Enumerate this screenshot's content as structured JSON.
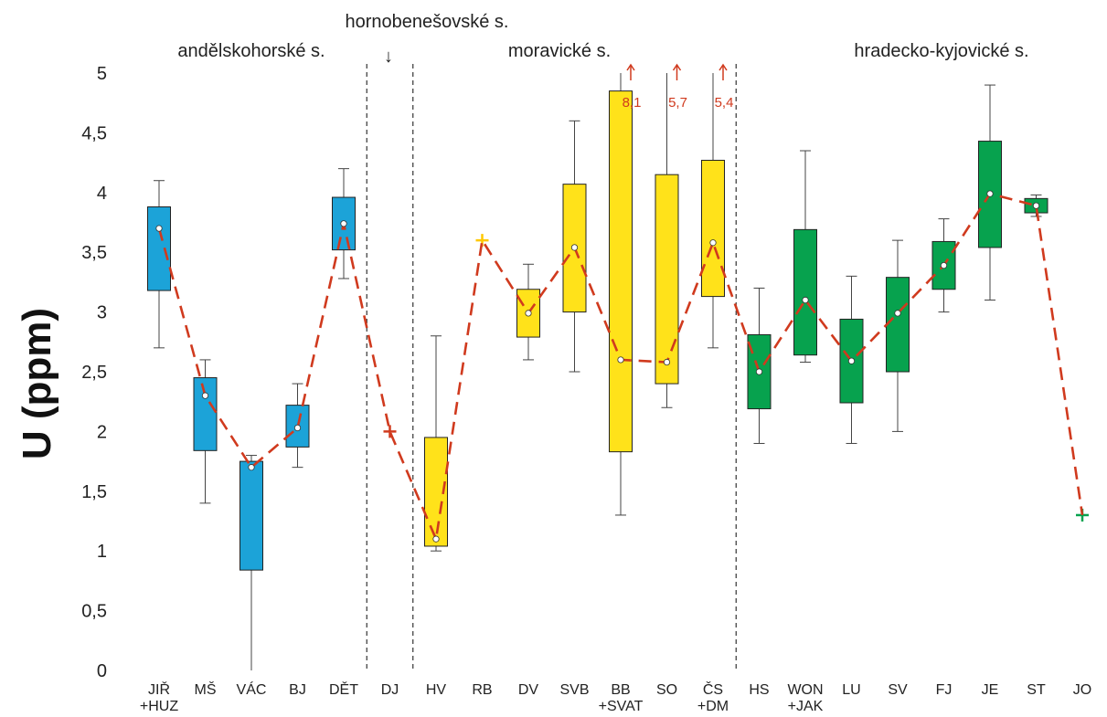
{
  "chart_data": {
    "type": "box",
    "ylabel": "U (ppm)",
    "ylim": [
      0,
      5
    ],
    "yticks": [
      "0",
      "0,5",
      "1",
      "1,5",
      "2",
      "2,5",
      "3",
      "3,5",
      "4",
      "4,5",
      "5"
    ],
    "grid": false,
    "groups": [
      {
        "label": "andělskohorské s.",
        "color": "#1ca3d8",
        "categories": [
          "JIŘ+HUZ",
          "MŠ",
          "VÁC",
          "BJ",
          "DĚT"
        ]
      },
      {
        "label": "hornobenešovské s.",
        "color": "#7a7a7a",
        "categories": [
          "DJ"
        ]
      },
      {
        "label": "moravické s.",
        "color": "#ffe21a",
        "categories": [
          "HV",
          "RB",
          "DV",
          "SVB",
          "BB+SVAT",
          "SO",
          "ČS+DM"
        ]
      },
      {
        "label": "hradecko-kyjovické s.",
        "color": "#07a24e",
        "categories": [
          "HS",
          "WON+JAK",
          "LU",
          "SV",
          "FJ",
          "JE",
          "ST",
          "JO"
        ]
      }
    ],
    "boxes": [
      {
        "name": "JIŘ",
        "name2": "+HUZ",
        "color": "#1ca3d8",
        "min": 2.7,
        "q1": 3.18,
        "median": 3.7,
        "q3": 3.88,
        "max": 4.1
      },
      {
        "name": "MŠ",
        "name2": "",
        "color": "#1ca3d8",
        "min": 1.4,
        "q1": 1.84,
        "median": 2.3,
        "q3": 2.45,
        "max": 2.6
      },
      {
        "name": "VÁC",
        "name2": "",
        "color": "#1ca3d8",
        "min": 0,
        "q1": 0.84,
        "median": 1.7,
        "q3": 1.75,
        "max": 1.8
      },
      {
        "name": "BJ",
        "name2": "",
        "color": "#1ca3d8",
        "min": 1.7,
        "q1": 1.87,
        "median": 2.03,
        "q3": 2.22,
        "max": 2.4
      },
      {
        "name": "DĚT",
        "name2": "",
        "color": "#1ca3d8",
        "min": 3.28,
        "q1": 3.52,
        "median": 3.74,
        "q3": 3.96,
        "max": 4.2
      },
      {
        "name": "DJ",
        "name2": "",
        "color": "#d03a1e",
        "single": 2.0
      },
      {
        "name": "HV",
        "name2": "",
        "color": "#ffe21a",
        "min": 1.0,
        "q1": 1.04,
        "median": 1.1,
        "q3": 1.95,
        "max": 2.8
      },
      {
        "name": "RB",
        "name2": "",
        "color": "#ffc800",
        "single": 3.6
      },
      {
        "name": "DV",
        "name2": "",
        "color": "#ffe21a",
        "min": 2.6,
        "q1": 2.79,
        "median": 2.99,
        "q3": 3.19,
        "max": 3.4
      },
      {
        "name": "SVB",
        "name2": "",
        "color": "#ffe21a",
        "min": 2.5,
        "q1": 3.0,
        "median": 3.54,
        "q3": 4.07,
        "max": 4.6
      },
      {
        "name": "BB",
        "name2": "+SVAT",
        "color": "#ffe21a",
        "min": 1.3,
        "q1": 1.83,
        "median": 2.6,
        "q3": 4.85,
        "max": 5.0,
        "overflow": "8,1"
      },
      {
        "name": "SO",
        "name2": "",
        "color": "#ffe21a",
        "min": 2.2,
        "q1": 2.4,
        "median": 2.58,
        "q3": 4.15,
        "max": 5.0,
        "overflow": "5,7"
      },
      {
        "name": "ČS",
        "name2": "+DM",
        "color": "#ffe21a",
        "min": 2.7,
        "q1": 3.13,
        "median": 3.58,
        "q3": 4.27,
        "max": 5.0,
        "overflow": "5,4"
      },
      {
        "name": "HS",
        "name2": "",
        "color": "#07a24e",
        "min": 1.9,
        "q1": 2.19,
        "median": 2.5,
        "q3": 2.81,
        "max": 3.2
      },
      {
        "name": "WON",
        "name2": "+JAK",
        "color": "#07a24e",
        "min": 2.58,
        "q1": 2.64,
        "median": 3.1,
        "q3": 3.69,
        "max": 4.35
      },
      {
        "name": "LU",
        "name2": "",
        "color": "#07a24e",
        "min": 1.9,
        "q1": 2.24,
        "median": 2.59,
        "q3": 2.94,
        "max": 3.3
      },
      {
        "name": "SV",
        "name2": "",
        "color": "#07a24e",
        "min": 2.0,
        "q1": 2.5,
        "median": 2.99,
        "q3": 3.29,
        "max": 3.6
      },
      {
        "name": "FJ",
        "name2": "",
        "color": "#07a24e",
        "min": 3.0,
        "q1": 3.19,
        "median": 3.39,
        "q3": 3.59,
        "max": 3.78
      },
      {
        "name": "JE",
        "name2": "",
        "color": "#07a24e",
        "min": 3.1,
        "q1": 3.54,
        "median": 3.99,
        "q3": 4.43,
        "max": 4.9
      },
      {
        "name": "ST",
        "name2": "",
        "color": "#07a24e",
        "min": 3.8,
        "q1": 3.83,
        "median": 3.89,
        "q3": 3.95,
        "max": 3.98
      },
      {
        "name": "JO",
        "name2": "",
        "color": "#07a24e",
        "single": 1.3
      }
    ],
    "annotations": [
      "↓"
    ],
    "median_line_color": "#d03a1e"
  }
}
